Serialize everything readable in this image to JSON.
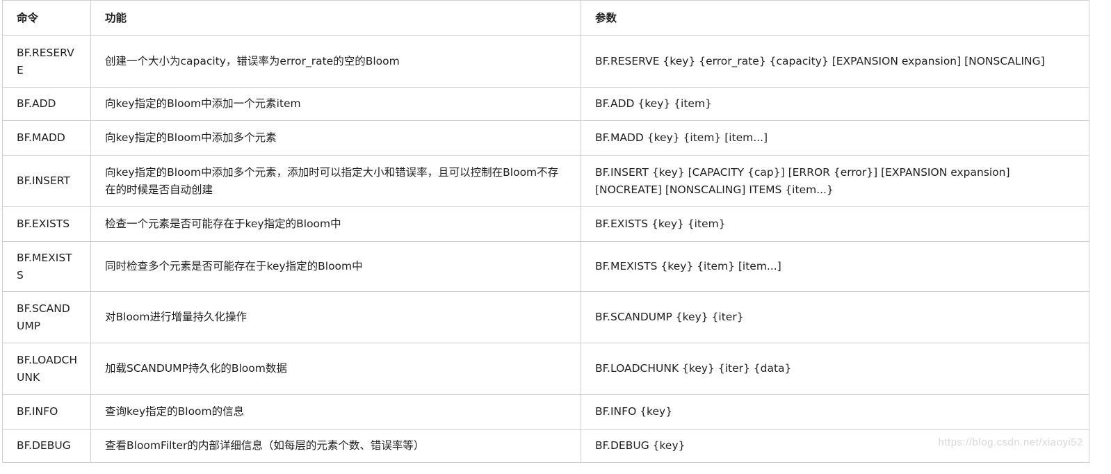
{
  "headers": [
    "命令",
    "功能",
    "参数"
  ],
  "rows": [
    {
      "cmd": "BF.RESERVE",
      "desc": "创建一个大小为capacity，错误率为error_rate的空的Bloom",
      "args": "BF.RESERVE {key} {error_rate} {capacity} [EXPANSION expansion] [NONSCALING]"
    },
    {
      "cmd": "BF.ADD",
      "desc": "向key指定的Bloom中添加一个元素item",
      "args": "BF.ADD {key} {item}"
    },
    {
      "cmd": "BF.MADD",
      "desc": "向key指定的Bloom中添加多个元素",
      "args": "BF.MADD {key} {item} [item...]"
    },
    {
      "cmd": "BF.INSERT",
      "desc": "向key指定的Bloom中添加多个元素，添加时可以指定大小和错误率，且可以控制在Bloom不存在的时候是否自动创建",
      "args": "BF.INSERT {key} [CAPACITY {cap}] [ERROR {error}] [EXPANSION expansion] [NOCREATE] [NONSCALING] ITEMS {item...}"
    },
    {
      "cmd": "BF.EXISTS",
      "desc": "检查一个元素是否可能存在于key指定的Bloom中",
      "args": "BF.EXISTS {key} {item}"
    },
    {
      "cmd": "BF.MEXISTS",
      "desc": "同时检查多个元素是否可能存在于key指定的Bloom中",
      "args": "BF.MEXISTS {key} {item} [item...]"
    },
    {
      "cmd": "BF.SCANDUMP",
      "desc": "对Bloom进行增量持久化操作",
      "args": "BF.SCANDUMP {key} {iter}"
    },
    {
      "cmd": "BF.LOADCHUNK",
      "desc": "加载SCANDUMP持久化的Bloom数据",
      "args": "BF.LOADCHUNK {key} {iter} {data}"
    },
    {
      "cmd": "BF.INFO",
      "desc": "查询key指定的Bloom的信息",
      "args": "BF.INFO {key}"
    },
    {
      "cmd": "BF.DEBUG",
      "desc": "查看BloomFilter的内部详细信息（如每层的元素个数、错误率等）",
      "args": "BF.DEBUG {key}"
    }
  ],
  "watermark": "https://blog.csdn.net/xiaoyi52"
}
